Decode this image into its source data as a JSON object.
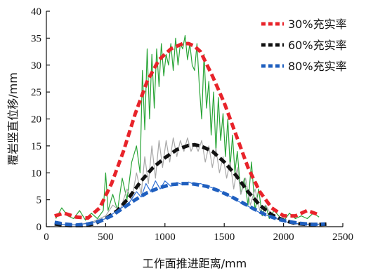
{
  "chart_data": {
    "type": "line",
    "xlabel": "工作面推进距离/mm",
    "ylabel": "覆岩竖直位移/mm",
    "xlim": [
      0,
      2500
    ],
    "ylim": [
      0,
      40
    ],
    "xticks": [
      "0",
      "500",
      "1000",
      "1500",
      "2000",
      "2500"
    ],
    "yticks": [
      "0",
      "5",
      "10",
      "15",
      "20",
      "25",
      "30",
      "35",
      "40"
    ],
    "grid": false,
    "legend_position": "top-right",
    "series": [
      {
        "name": "30%充实率",
        "color": "#e8232a",
        "style": "dashed",
        "x": [
          70,
          150,
          250,
          350,
          450,
          550,
          650,
          750,
          850,
          950,
          1050,
          1150,
          1200,
          1250,
          1300,
          1400,
          1500,
          1600,
          1700,
          1800,
          1900,
          2000,
          2100,
          2200,
          2300
        ],
        "y": [
          2,
          2.5,
          1.8,
          1.6,
          3.5,
          8,
          14,
          21,
          27,
          31,
          33,
          34,
          34,
          33.5,
          32.5,
          28,
          23,
          17,
          11,
          6.5,
          3.5,
          2,
          2,
          3,
          2.2
        ]
      },
      {
        "name": "60%充实率",
        "color": "#111111",
        "style": "dashed",
        "x": [
          70,
          200,
          300,
          400,
          500,
          600,
          700,
          800,
          900,
          1000,
          1100,
          1200,
          1250,
          1300,
          1400,
          1500,
          1600,
          1700,
          1800,
          1900,
          2000,
          2100,
          2200,
          2300,
          2380
        ],
        "y": [
          0.5,
          0.2,
          0.2,
          0.5,
          1.5,
          3,
          5.5,
          8.5,
          11,
          12.8,
          14.3,
          15.1,
          15.2,
          15,
          14,
          12,
          9.5,
          6.5,
          4,
          2.2,
          1.2,
          0.6,
          0.4,
          0.4,
          0.5
        ]
      },
      {
        "name": "80%充实率",
        "color": "#1f5fbf",
        "style": "dashed",
        "x": [
          70,
          150,
          250,
          350,
          450,
          550,
          650,
          750,
          850,
          950,
          1050,
          1150,
          1200,
          1250,
          1350,
          1450,
          1550,
          1650,
          1750,
          1850,
          1950,
          2050,
          2150,
          2250,
          2350
        ],
        "y": [
          0.8,
          0.5,
          0.3,
          0.5,
          1,
          2,
          3.5,
          5,
          6.3,
          7.2,
          7.8,
          8,
          8,
          7.9,
          7.5,
          6.7,
          5.7,
          4.5,
          3.3,
          2.2,
          1.4,
          0.9,
          0.6,
          0.4,
          0.5
        ]
      }
    ],
    "raw_series": [
      {
        "color": "#2aa538",
        "x": [
          80,
          130,
          180,
          230,
          280,
          330,
          380,
          430,
          480,
          500,
          520,
          560,
          600,
          640,
          680,
          720,
          760,
          790,
          810,
          830,
          850,
          870,
          890,
          910,
          930,
          950,
          970,
          990,
          1010,
          1030,
          1050,
          1070,
          1090,
          1110,
          1130,
          1150,
          1170,
          1190,
          1210,
          1230,
          1250,
          1270,
          1290,
          1310,
          1330,
          1350,
          1370,
          1390,
          1410,
          1430,
          1450,
          1470,
          1490,
          1510,
          1530,
          1550,
          1570,
          1590,
          1610,
          1640,
          1670,
          1700,
          1730,
          1760,
          1790,
          1820,
          1850,
          1880,
          1920,
          1960,
          2000,
          2050,
          2100,
          2150,
          2200,
          2250,
          2300
        ],
        "y": [
          1.5,
          3.5,
          2,
          1.5,
          3,
          1.2,
          2.5,
          1.5,
          3,
          10,
          3,
          6,
          3,
          9,
          5,
          12,
          15,
          10,
          29,
          18,
          33,
          20,
          32,
          22,
          33,
          26,
          34,
          28,
          32,
          30,
          34,
          29,
          35,
          30,
          34,
          33,
          35.5,
          31,
          34,
          30,
          29,
          34,
          26,
          20,
          32,
          22,
          27,
          17,
          25,
          14,
          24,
          16,
          21,
          13,
          20,
          11,
          17,
          10,
          14,
          6,
          9,
          4,
          12,
          3,
          7,
          2,
          4,
          1.5,
          3,
          2,
          1,
          2.5,
          1.5,
          2,
          1.5,
          2.5,
          1.8
        ]
      },
      {
        "color": "#a8a8a8",
        "x": [
          80,
          200,
          300,
          400,
          500,
          560,
          620,
          680,
          720,
          760,
          800,
          830,
          860,
          890,
          920,
          950,
          980,
          1010,
          1040,
          1070,
          1100,
          1130,
          1160,
          1190,
          1220,
          1250,
          1280,
          1310,
          1340,
          1370,
          1400,
          1430,
          1460,
          1490,
          1520,
          1550,
          1580,
          1610,
          1640,
          1680,
          1720,
          1760,
          1800,
          1850,
          1900,
          1950,
          2000,
          2100,
          2200,
          2300
        ],
        "y": [
          0.5,
          0.3,
          0.5,
          1,
          2,
          4,
          3,
          7,
          5,
          10,
          6,
          13,
          8,
          15,
          9,
          16,
          11,
          16,
          12,
          16.5,
          13,
          16,
          14,
          16.5,
          14,
          15.5,
          14,
          16,
          12,
          15,
          11,
          14.5,
          10,
          13,
          9,
          12,
          7,
          11,
          6,
          9,
          4,
          7,
          3,
          4,
          2,
          1.5,
          1,
          0.5,
          0.5,
          0.5
        ]
      },
      {
        "color": "#2f6fd4",
        "x": [
          80,
          250,
          400,
          500,
          600,
          700,
          760,
          800,
          840,
          880,
          920,
          960,
          1000,
          1050,
          1100,
          1150,
          1200,
          1250,
          1300,
          1350,
          1400,
          1450,
          1500,
          1550,
          1600,
          1650,
          1700,
          1800,
          1900,
          2000,
          2100,
          2200,
          2300
        ],
        "y": [
          0.5,
          0.3,
          0.8,
          1.5,
          3,
          4.5,
          6.5,
          5.5,
          8,
          6.5,
          8.5,
          7,
          8.5,
          7.5,
          8.2,
          7.8,
          8.3,
          7.8,
          8,
          7.6,
          7.2,
          6.8,
          6.2,
          5.6,
          5,
          4.3,
          3.8,
          2.6,
          1.8,
          1,
          0.6,
          0.4,
          0.4
        ]
      }
    ]
  }
}
